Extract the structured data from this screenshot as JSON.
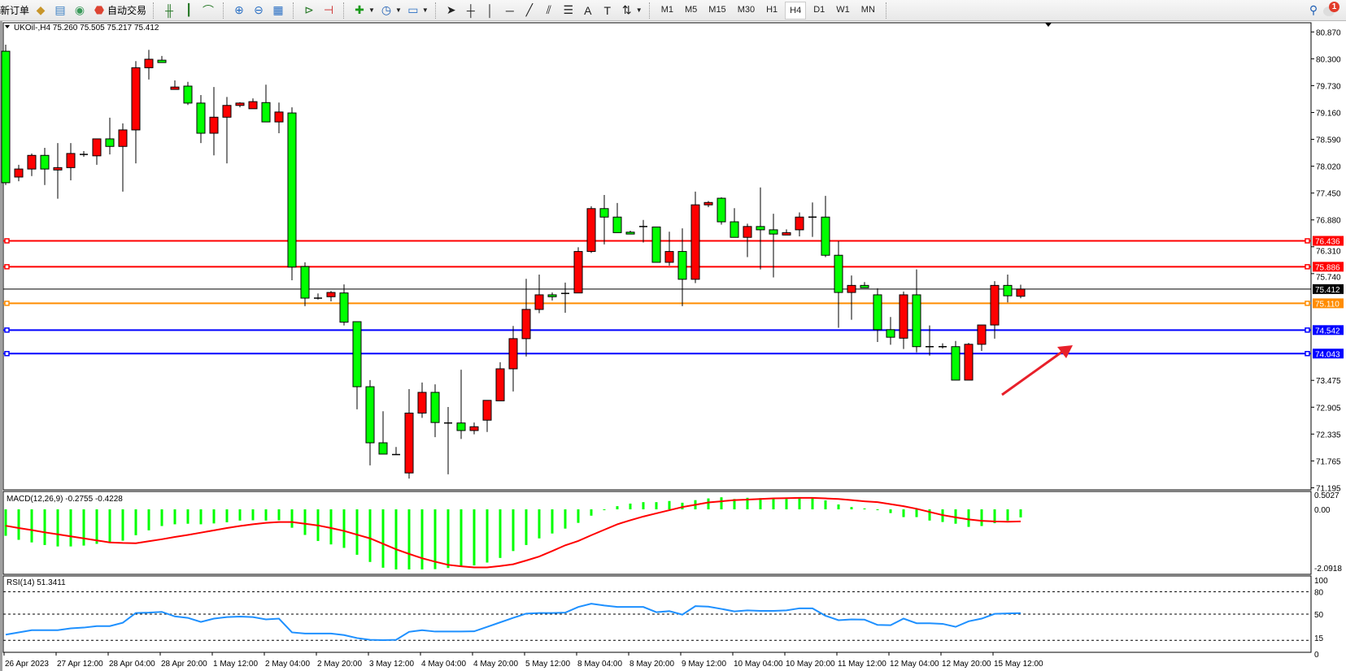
{
  "toolbar": {
    "new_order": "新订单",
    "auto_trading": "自动交易",
    "timeframes": [
      "M1",
      "M5",
      "M15",
      "M30",
      "H1",
      "H4",
      "D1",
      "W1",
      "MN"
    ],
    "selected_timeframe": "H4",
    "notification_count": "1",
    "icons": [
      "gold-bars-icon",
      "history-icon",
      "signal-icon",
      "auto-trading-icon",
      "bar-chart-icon",
      "candlestick-icon",
      "line-chart-icon",
      "zoom-in-icon",
      "zoom-out-icon",
      "tile-windows-icon",
      "auto-scroll-icon",
      "chart-shift-icon",
      "add-indicator-icon",
      "clock-icon",
      "template-icon",
      "cursor-icon",
      "crosshair-icon",
      "vertical-line-icon",
      "horizontal-line-icon",
      "trendline-icon",
      "fibo-channel-icon",
      "fibo-icon",
      "text-icon",
      "label-icon",
      "arrows-icon",
      "search-icon",
      "notification-icon"
    ]
  },
  "chart": {
    "header": "UKOil-,H4  75.260 75.505 75.217 75.412",
    "macd_label": "MACD(12,26,9) -0.2755 -0.4228",
    "rsi_label": "RSI(14) 51.3411"
  },
  "chart_data": {
    "type": "candlestick",
    "symbol": "UKOil-",
    "timeframe": "H4",
    "ylim": [
      71.195,
      80.87
    ],
    "price_ticks": [
      "80.870",
      "80.300",
      "79.730",
      "79.160",
      "78.590",
      "78.020",
      "77.450",
      "76.880",
      "76.310",
      "75.740",
      "73.475",
      "72.905",
      "72.335",
      "71.765",
      "71.195"
    ],
    "time_labels": [
      "26 Apr 2023",
      "27 Apr 12:00",
      "28 Apr 04:00",
      "28 Apr 20:00",
      "1 May 12:00",
      "2 May 04:00",
      "2 May 20:00",
      "3 May 12:00",
      "4 May 04:00",
      "4 May 20:00",
      "5 May 12:00",
      "8 May 04:00",
      "8 May 20:00",
      "9 May 12:00",
      "10 May 04:00",
      "10 May 20:00",
      "11 May 12:00",
      "12 May 04:00",
      "12 May 20:00",
      "15 May 12:00"
    ],
    "up_color": "#ff0000",
    "down_color": "#00ff00",
    "ohlc": [
      [
        80.46,
        80.6,
        77.62,
        77.67
      ],
      [
        77.79,
        78.05,
        77.7,
        77.96
      ],
      [
        77.96,
        78.29,
        77.81,
        78.25
      ],
      [
        78.25,
        78.41,
        77.62,
        77.96
      ],
      [
        77.94,
        78.51,
        77.33,
        77.99
      ],
      [
        77.99,
        78.51,
        77.72,
        78.29
      ],
      [
        78.27,
        78.34,
        78.22,
        78.27
      ],
      [
        78.24,
        78.6,
        78.05,
        78.6
      ],
      [
        78.6,
        79.05,
        78.27,
        78.44
      ],
      [
        78.44,
        78.93,
        77.48,
        78.79
      ],
      [
        78.79,
        80.25,
        78.08,
        80.11
      ],
      [
        80.11,
        80.49,
        79.86,
        80.29
      ],
      [
        80.27,
        80.36,
        80.22,
        80.22
      ],
      [
        79.65,
        79.84,
        79.65,
        79.7
      ],
      [
        79.72,
        79.81,
        79.32,
        79.36
      ],
      [
        79.36,
        79.53,
        78.51,
        78.72
      ],
      [
        78.72,
        79.7,
        78.25,
        79.06
      ],
      [
        79.06,
        79.49,
        78.08,
        79.31
      ],
      [
        79.31,
        79.38,
        79.27,
        79.36
      ],
      [
        79.24,
        79.46,
        79.24,
        79.39
      ],
      [
        79.37,
        79.75,
        78.96,
        78.96
      ],
      [
        78.96,
        79.37,
        78.72,
        79.17
      ],
      [
        79.15,
        79.27,
        75.6,
        75.88
      ],
      [
        75.89,
        75.98,
        75.05,
        75.22
      ],
      [
        75.22,
        75.32,
        75.19,
        75.22
      ],
      [
        75.25,
        75.37,
        75.15,
        75.34
      ],
      [
        75.33,
        75.51,
        74.64,
        74.71
      ],
      [
        74.72,
        74.72,
        72.86,
        73.34
      ],
      [
        73.34,
        73.48,
        71.67,
        72.15
      ],
      [
        72.15,
        72.82,
        71.91,
        71.91
      ],
      [
        71.9,
        72.06,
        71.9,
        71.9
      ],
      [
        71.51,
        73.29,
        71.39,
        72.78
      ],
      [
        72.78,
        73.43,
        72.68,
        73.22
      ],
      [
        73.22,
        73.39,
        72.27,
        72.58
      ],
      [
        72.57,
        72.91,
        71.48,
        72.57
      ],
      [
        72.57,
        73.7,
        72.23,
        72.41
      ],
      [
        72.41,
        72.58,
        72.33,
        72.49
      ],
      [
        72.63,
        73.05,
        72.38,
        73.05
      ],
      [
        73.04,
        73.86,
        73.04,
        73.72
      ],
      [
        73.72,
        74.63,
        73.24,
        74.36
      ],
      [
        74.36,
        75.63,
        73.98,
        74.98
      ],
      [
        74.98,
        75.72,
        74.9,
        75.29
      ],
      [
        75.29,
        75.34,
        75.17,
        75.25
      ],
      [
        75.32,
        75.55,
        74.91,
        75.32
      ],
      [
        75.33,
        76.3,
        75.33,
        76.21
      ],
      [
        76.21,
        77.17,
        76.18,
        77.12
      ],
      [
        77.12,
        77.41,
        76.36,
        76.94
      ],
      [
        76.94,
        77.24,
        76.61,
        76.61
      ],
      [
        76.62,
        76.65,
        76.58,
        76.58
      ],
      [
        76.74,
        76.88,
        76.4,
        76.74
      ],
      [
        76.73,
        76.73,
        75.98,
        75.98
      ],
      [
        75.98,
        76.63,
        75.91,
        76.21
      ],
      [
        76.21,
        76.7,
        75.05,
        75.62
      ],
      [
        75.62,
        77.48,
        75.54,
        77.2
      ],
      [
        77.2,
        77.28,
        77.15,
        77.25
      ],
      [
        77.34,
        77.36,
        76.78,
        76.84
      ],
      [
        76.84,
        77.13,
        76.51,
        76.51
      ],
      [
        76.51,
        76.8,
        76.09,
        76.74
      ],
      [
        76.74,
        77.57,
        75.83,
        76.67
      ],
      [
        76.67,
        77.01,
        75.66,
        76.58
      ],
      [
        76.56,
        76.68,
        76.56,
        76.61
      ],
      [
        76.67,
        77.04,
        76.53,
        76.94
      ],
      [
        76.94,
        77.25,
        76.52,
        76.94
      ],
      [
        76.94,
        77.39,
        76.09,
        76.13
      ],
      [
        76.13,
        76.43,
        74.59,
        75.34
      ],
      [
        75.34,
        75.7,
        74.76,
        75.49
      ],
      [
        75.49,
        75.56,
        75.44,
        75.44
      ],
      [
        75.29,
        75.43,
        74.29,
        74.55
      ],
      [
        74.55,
        74.82,
        74.23,
        74.39
      ],
      [
        74.37,
        75.36,
        74.14,
        75.29
      ],
      [
        75.29,
        75.83,
        74.07,
        74.19
      ],
      [
        74.19,
        74.64,
        74.0,
        74.19
      ],
      [
        74.19,
        74.26,
        74.15,
        74.19
      ],
      [
        74.19,
        74.31,
        73.48,
        73.48
      ],
      [
        73.48,
        74.27,
        73.48,
        74.24
      ],
      [
        74.24,
        74.65,
        74.1,
        74.65
      ],
      [
        74.65,
        75.58,
        74.36,
        75.49
      ],
      [
        75.49,
        75.72,
        75.13,
        75.27
      ],
      [
        75.26,
        75.505,
        75.217,
        75.412
      ]
    ],
    "levels": [
      {
        "price": 76.436,
        "label": "76.436",
        "color": "#ff0000"
      },
      {
        "price": 75.886,
        "label": "75.886",
        "color": "#ff0000"
      },
      {
        "price": 75.412,
        "label": "75.412",
        "color": "#000000",
        "bid": true
      },
      {
        "price": 75.11,
        "label": "75.110",
        "color": "#ff8c00"
      },
      {
        "price": 74.542,
        "label": "74.542",
        "color": "#0000ff"
      },
      {
        "price": 74.043,
        "label": "74.043",
        "color": "#0000ff"
      }
    ],
    "macd": {
      "ylim": [
        -2.0918,
        0.5027
      ],
      "ticks": [
        "0.5027",
        "0.00",
        "-2.0918"
      ],
      "histogram_color": "#00ff00",
      "signal_color": "#ff0000",
      "histogram": [
        -0.92,
        -1.06,
        -1.15,
        -1.24,
        -1.29,
        -1.29,
        -1.26,
        -1.2,
        -1.15,
        -1.09,
        -0.9,
        -0.73,
        -0.58,
        -0.52,
        -0.5,
        -0.52,
        -0.49,
        -0.45,
        -0.39,
        -0.38,
        -0.39,
        -0.38,
        -0.64,
        -0.89,
        -1.1,
        -1.22,
        -1.34,
        -1.58,
        -1.83,
        -2.03,
        -2.09,
        -2.09,
        -2.09,
        -2.08,
        -2.04,
        -1.98,
        -1.95,
        -1.85,
        -1.69,
        -1.45,
        -1.24,
        -1.01,
        -0.84,
        -0.67,
        -0.47,
        -0.22,
        -0.02,
        0.11,
        0.2,
        0.25,
        0.25,
        0.29,
        0.23,
        0.32,
        0.38,
        0.42,
        0.36,
        0.4,
        0.39,
        0.36,
        0.36,
        0.38,
        0.39,
        0.31,
        0.17,
        0.08,
        0.03,
        -0.02,
        -0.13,
        -0.27,
        -0.27,
        -0.39,
        -0.44,
        -0.5,
        -0.61,
        -0.58,
        -0.48,
        -0.39,
        -0.28
      ],
      "signal": [
        -0.57,
        -0.65,
        -0.72,
        -0.8,
        -0.87,
        -0.94,
        -1.01,
        -1.08,
        -1.15,
        -1.17,
        -1.18,
        -1.11,
        -1.04,
        -0.96,
        -0.89,
        -0.81,
        -0.73,
        -0.65,
        -0.58,
        -0.52,
        -0.47,
        -0.44,
        -0.44,
        -0.5,
        -0.56,
        -0.65,
        -0.75,
        -0.88,
        -1.01,
        -1.2,
        -1.39,
        -1.55,
        -1.7,
        -1.82,
        -1.93,
        -1.98,
        -2.02,
        -2.02,
        -1.97,
        -1.91,
        -1.78,
        -1.64,
        -1.45,
        -1.25,
        -1.1,
        -0.9,
        -0.71,
        -0.52,
        -0.38,
        -0.25,
        -0.14,
        -0.03,
        0.08,
        0.16,
        0.24,
        0.28,
        0.32,
        0.34,
        0.36,
        0.38,
        0.39,
        0.4,
        0.4,
        0.38,
        0.36,
        0.32,
        0.28,
        0.25,
        0.18,
        0.11,
        0.02,
        -0.09,
        -0.2,
        -0.28,
        -0.35,
        -0.4,
        -0.42,
        -0.43,
        -0.42
      ]
    },
    "rsi": {
      "ylim": [
        0,
        100
      ],
      "ticks": [
        "100",
        "80",
        "50",
        "15",
        "0"
      ],
      "levels": [
        80,
        50,
        15
      ],
      "color": "#1e90ff",
      "values": [
        22.6,
        25.5,
        28.5,
        28.5,
        28.5,
        31,
        32,
        34,
        34,
        38.5,
        51.5,
        52,
        53,
        47,
        45,
        39.6,
        44,
        46,
        46.7,
        46,
        43,
        44,
        25.6,
        24,
        24,
        24,
        22,
        18,
        15.6,
        15.2,
        15.6,
        26.3,
        28.5,
        26.7,
        26.7,
        26.7,
        27,
        33,
        39,
        45,
        50.7,
        51.5,
        51.5,
        52,
        59.6,
        64,
        61.5,
        59.6,
        59.6,
        59.6,
        52.6,
        54,
        49.3,
        60.7,
        60,
        57,
        53.7,
        55,
        54.4,
        54.4,
        55,
        57.8,
        57.8,
        47.8,
        41.9,
        43,
        42.6,
        35.6,
        35.2,
        44,
        37.8,
        37.8,
        37,
        33,
        40.4,
        44,
        50.4,
        51,
        51.34
      ]
    },
    "annotation": {
      "type": "arrow",
      "color": "#e8202a",
      "direction": "up-right"
    }
  }
}
